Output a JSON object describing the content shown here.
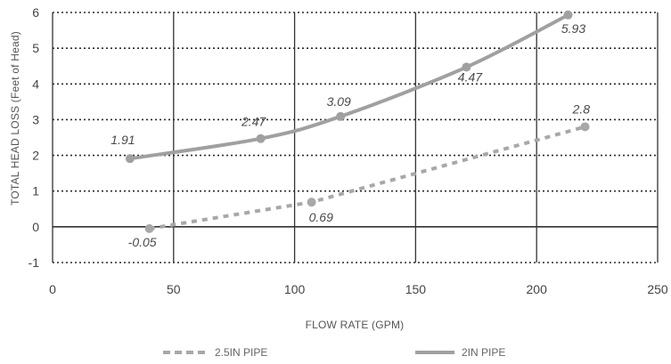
{
  "chart_data": {
    "type": "line",
    "xlabel": "FLOW RATE (GPM)",
    "ylabel": "TOTAL HEAD LOSS (Feet of Head)",
    "xlim": [
      0,
      250
    ],
    "ylim": [
      -1,
      6
    ],
    "x_ticks": [
      0,
      50,
      100,
      150,
      200,
      250
    ],
    "y_ticks": [
      -1,
      0,
      1,
      2,
      3,
      4,
      5,
      6
    ],
    "grid": {
      "vertical": "solid",
      "horizontal": "dotted"
    },
    "legend_position": "bottom",
    "series": [
      {
        "name": "2.5IN PIPE",
        "style": "dashed",
        "color": "#a8a8a8",
        "points": [
          {
            "x": 40,
            "y": -0.05,
            "label": "-0.05"
          },
          {
            "x": 107,
            "y": 0.69,
            "label": "0.69"
          },
          {
            "x": 220,
            "y": 2.8,
            "label": "2.8"
          }
        ]
      },
      {
        "name": "2IN PIPE",
        "style": "solid",
        "color": "#a0a0a0",
        "points": [
          {
            "x": 32,
            "y": 1.91,
            "label": "1.91"
          },
          {
            "x": 86,
            "y": 2.47,
            "label": "2.47"
          },
          {
            "x": 119,
            "y": 3.09,
            "label": "3.09"
          },
          {
            "x": 171,
            "y": 4.47,
            "label": "4.47"
          },
          {
            "x": 213,
            "y": 5.93,
            "label": "5.93"
          }
        ]
      }
    ]
  }
}
